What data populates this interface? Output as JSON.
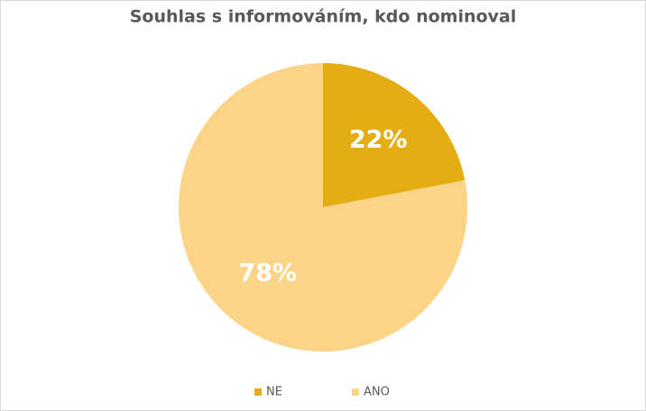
{
  "chart_data": {
    "type": "pie",
    "title": "Souhlas s informováním, kdo nominoval",
    "categories": [
      "NE",
      "ANO"
    ],
    "values": [
      22,
      78
    ],
    "value_labels": [
      "22%",
      "78%"
    ],
    "colors": [
      "#e4ad14",
      "#fcd488"
    ]
  }
}
